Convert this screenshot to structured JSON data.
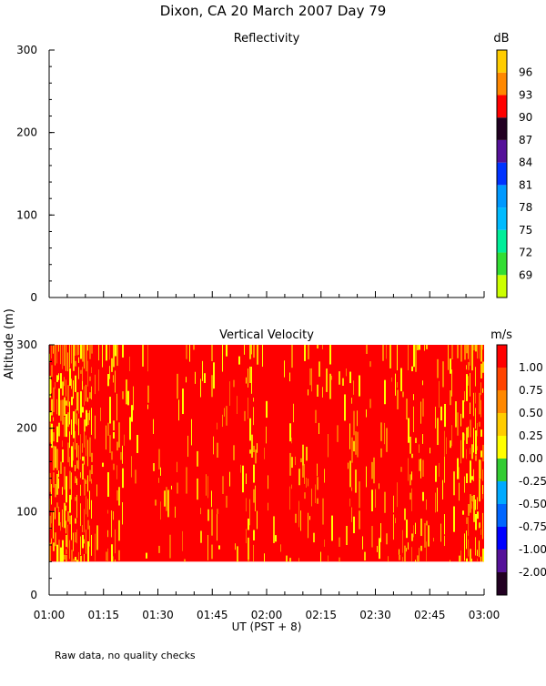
{
  "figure": {
    "title": "Dixon, CA 20 March 2007  Day  79",
    "shared_ylabel": "Altitude (m)",
    "xlabel": "UT  (PST + 8)",
    "footnote": "Raw data, no quality checks"
  },
  "chart_data": [
    {
      "type": "heatmap",
      "title": "Reflectivity",
      "xlabel": "UT  (PST + 8)",
      "ylabel": "Altitude (m)",
      "x_range": [
        "01:00",
        "03:00"
      ],
      "ylim": [
        0,
        300
      ],
      "y_ticks": [
        0,
        100,
        200,
        300
      ],
      "data_present": false,
      "colorbar": {
        "unit": "dB",
        "tick_labels": [
          "69",
          "72",
          "75",
          "78",
          "81",
          "84",
          "87",
          "90",
          "93",
          "96"
        ],
        "colors": [
          "#ccff00",
          "#33dd33",
          "#00ee99",
          "#00bbff",
          "#0099ff",
          "#0033ff",
          "#551199",
          "#220022",
          "#ff0000",
          "#ff8800",
          "#ffcc00"
        ]
      }
    },
    {
      "type": "heatmap",
      "title": "Vertical Velocity",
      "xlabel": "UT  (PST + 8)",
      "ylabel": "Altitude (m)",
      "x_range": [
        "01:00",
        "03:00"
      ],
      "x_tick_labels": [
        "01:00",
        "01:15",
        "01:30",
        "01:45",
        "02:00",
        "02:15",
        "02:30",
        "02:45",
        "03:00"
      ],
      "ylim": [
        0,
        300
      ],
      "y_ticks": [
        0,
        100,
        200,
        300
      ],
      "data_altitude_range": [
        40,
        300
      ],
      "dominant_value": 1.25,
      "colorbar": {
        "unit": "m/s",
        "tick_labels": [
          "-2.00",
          "-1.00",
          "-0.75",
          "-0.50",
          "-0.25",
          "0.00",
          "0.25",
          "0.50",
          "0.75",
          "1.00"
        ],
        "colors": [
          "#220022",
          "#551199",
          "#0000ff",
          "#0066ff",
          "#00aaff",
          "#33cc33",
          "#ffff00",
          "#ffcc00",
          "#ff8800",
          "#ff4400",
          "#ff0000"
        ]
      }
    }
  ]
}
